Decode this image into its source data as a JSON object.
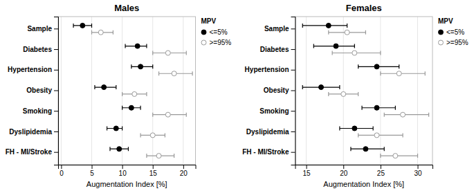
{
  "chart_data": [
    {
      "type": "dot",
      "title": "Males",
      "x_label": "Augmentation Index [%]",
      "categories": [
        "Sample",
        "Diabetes",
        "Hypertension",
        "Obesity",
        "Smoking",
        "Dyslipidemia",
        "FH - MI/Stroke"
      ],
      "orientation": "horizontal",
      "legend_title": "MPV",
      "legend": "right",
      "grid": true,
      "xlim": [
        -0.5,
        22
      ],
      "xticks": [
        0,
        5,
        10,
        15,
        20
      ],
      "series": [
        {
          "name": "<=5%",
          "color": "#000000",
          "marker": "circle",
          "values": [
            3.5,
            12.5,
            13.0,
            7.0,
            11.5,
            9.0,
            9.5
          ],
          "error_low": [
            1.5,
            2.0,
            1.5,
            1.5,
            1.5,
            1.5,
            1.5
          ],
          "error_high": [
            1.5,
            1.5,
            2.0,
            2.0,
            1.5,
            1.0,
            1.5
          ]
        },
        {
          "name": ">=95%",
          "color": "#999999",
          "marker": "open-circle",
          "values": [
            6.5,
            17.5,
            18.5,
            12.0,
            17.5,
            15.0,
            16.0
          ],
          "error_low": [
            1.5,
            2.5,
            2.5,
            2.0,
            2.5,
            2.0,
            2.0
          ],
          "error_high": [
            2.0,
            3.0,
            3.0,
            2.0,
            3.0,
            2.0,
            2.5
          ]
        }
      ]
    },
    {
      "type": "dot",
      "title": "Females",
      "x_label": "Augmentation Index [%]",
      "categories": [
        "Sample",
        "Diabetes",
        "Hypertension",
        "Obesity",
        "Smoking",
        "Dyslipidemia",
        "FH - MI/Stroke"
      ],
      "orientation": "horizontal",
      "legend_title": "MPV",
      "legend": "right",
      "grid": true,
      "xlim": [
        13.5,
        32
      ],
      "xticks": [
        15,
        20,
        25,
        30
      ],
      "series": [
        {
          "name": "<=5%",
          "color": "#000000",
          "marker": "circle",
          "values": [
            18.0,
            19.0,
            24.5,
            17.0,
            24.5,
            21.5,
            23.0
          ],
          "error_low": [
            3.5,
            3.0,
            2.5,
            2.5,
            2.0,
            2.0,
            2.0
          ],
          "error_high": [
            2.5,
            2.5,
            3.0,
            2.5,
            2.5,
            2.5,
            2.5
          ]
        },
        {
          "name": ">=95%",
          "color": "#999999",
          "marker": "open-circle",
          "values": [
            20.5,
            21.5,
            27.5,
            20.0,
            28.0,
            24.5,
            27.0
          ],
          "error_low": [
            2.5,
            3.0,
            2.5,
            2.0,
            2.5,
            2.5,
            2.0
          ],
          "error_high": [
            2.5,
            3.5,
            3.5,
            2.0,
            3.5,
            3.5,
            3.0
          ]
        }
      ]
    }
  ]
}
